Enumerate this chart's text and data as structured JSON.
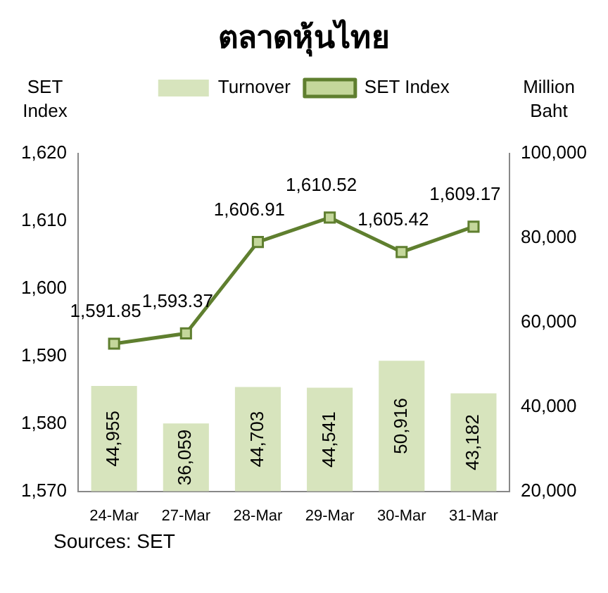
{
  "chart_data": {
    "type": "bar",
    "title": "ตลาดหุ้นไทย",
    "ylabel": "SET Index",
    "y2label": "Million Baht",
    "categories": [
      "24-Mar",
      "27-Mar",
      "28-Mar",
      "29-Mar",
      "30-Mar",
      "31-Mar"
    ],
    "series": [
      {
        "name": "Turnover",
        "axis": "y2",
        "color": "#d7e4bd",
        "values": [
          44955,
          36059,
          44703,
          44541,
          50916,
          43182
        ],
        "value_labels": [
          "44,955",
          "36,059",
          "44,703",
          "44,541",
          "50,916",
          "43,182"
        ]
      },
      {
        "name": "SET Index",
        "type": "line",
        "axis": "y",
        "color": "#5f7f2f",
        "values": [
          1591.85,
          1593.37,
          1606.91,
          1610.52,
          1605.42,
          1609.17
        ],
        "value_labels": [
          "1,591.85",
          "1,593.37",
          "1,606.91",
          "1,610.52",
          "1,605.42",
          "1,609.17"
        ]
      }
    ],
    "ylim": [
      1570,
      1620
    ],
    "yticks": [
      {
        "value": 1570,
        "label": "1,570"
      },
      {
        "value": 1580,
        "label": "1,580"
      },
      {
        "value": 1590,
        "label": "1,590"
      },
      {
        "value": 1600,
        "label": "1,600"
      },
      {
        "value": 1610,
        "label": "1,610"
      },
      {
        "value": 1620,
        "label": "1,620"
      }
    ],
    "y2lim": [
      20000,
      100000
    ],
    "y2ticks": [
      {
        "value": 20000,
        "label": "20,000"
      },
      {
        "value": 40000,
        "label": "40,000"
      },
      {
        "value": 60000,
        "label": "60,000"
      },
      {
        "value": 80000,
        "label": "80,000"
      },
      {
        "value": 100000,
        "label": "100,000"
      }
    ],
    "grid": false,
    "legend": "top",
    "marker": "square",
    "line_style": "solid",
    "annotations": [
      "Sources: SET"
    ]
  }
}
